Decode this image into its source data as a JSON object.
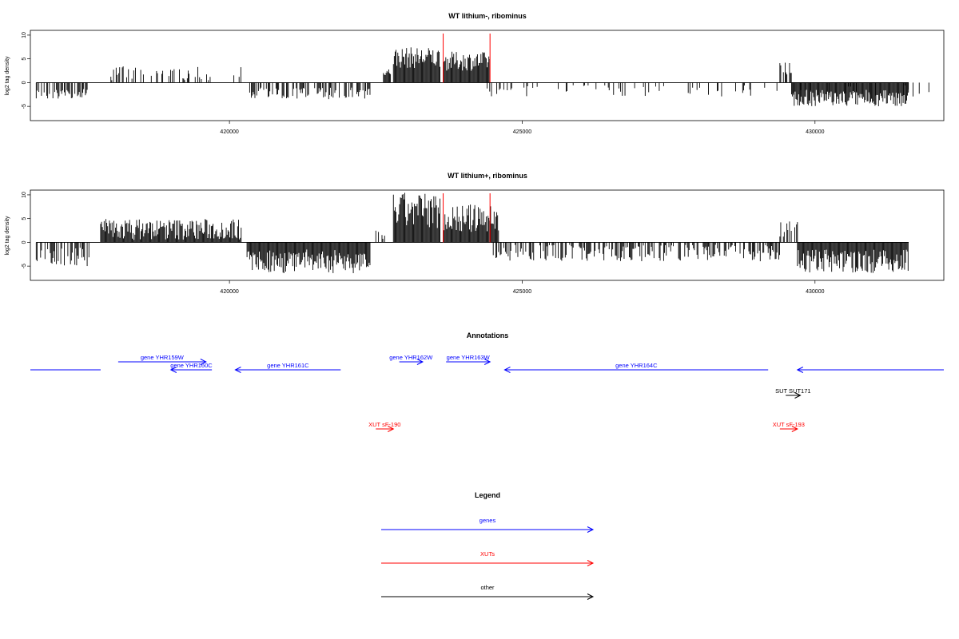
{
  "chart_data": [
    {
      "type": "bar",
      "title": "WT lithium-, ribominus",
      "ylabel": "log2 tag density",
      "xlim": [
        416600,
        432200
      ],
      "ylim": [
        -8,
        11
      ],
      "x_ticks": [
        "420000",
        "425000",
        "430000"
      ],
      "y_ticks": [
        "10",
        "5",
        "0",
        "-5"
      ],
      "grid": false,
      "series": [
        {
          "segments": [
            {
              "start": 416700,
              "end": 417600,
              "sign": -1,
              "min": 1.2,
              "max": 3.5
            },
            {
              "start": 417900,
              "end": 420200,
              "sign": 1,
              "min": 0.5,
              "max": 3.5,
              "density": 0.25
            },
            {
              "start": 420300,
              "end": 422400,
              "sign": -1,
              "min": 1.0,
              "max": 3.5
            },
            {
              "start": 422600,
              "end": 422750,
              "sign": 1,
              "min": 1.5,
              "max": 3.0
            },
            {
              "start": 422800,
              "end": 423600,
              "sign": 1,
              "min": 3.0,
              "max": 7.5,
              "density": 1.0
            },
            {
              "start": 423650,
              "end": 424450,
              "sign": 1,
              "min": 2.5,
              "max": 6.5,
              "density": 1.0
            },
            {
              "start": 424400,
              "end": 432000,
              "sign": -1,
              "min": 0.5,
              "max": 3.0,
              "density": 0.12
            },
            {
              "start": 429400,
              "end": 429600,
              "sign": 1,
              "min": 1.0,
              "max": 4.5
            },
            {
              "start": 429600,
              "end": 431600,
              "sign": -1,
              "min": 1.5,
              "max": 5.0,
              "density": 1.0
            }
          ]
        }
      ],
      "markers": [
        423650,
        424450
      ],
      "marker_color": "#ff0000",
      "bar_color": "#000000"
    },
    {
      "type": "bar",
      "title": "WT lithium+, ribominus",
      "ylabel": "log2 tag density",
      "xlim": [
        416600,
        432200
      ],
      "ylim": [
        -8,
        11
      ],
      "x_ticks": [
        "420000",
        "425000",
        "430000"
      ],
      "y_ticks": [
        "10",
        "5",
        "0",
        "-5"
      ],
      "grid": false,
      "series": [
        {
          "segments": [
            {
              "start": 416700,
              "end": 417600,
              "sign": -1,
              "min": 1.0,
              "max": 5.0
            },
            {
              "start": 417800,
              "end": 420200,
              "sign": 1,
              "min": 0.5,
              "max": 5.0,
              "density": 1.0
            },
            {
              "start": 420300,
              "end": 422400,
              "sign": -1,
              "min": 1.5,
              "max": 6.5,
              "density": 1.0
            },
            {
              "start": 422500,
              "end": 422750,
              "sign": 1,
              "min": 0.5,
              "max": 2.5
            },
            {
              "start": 422800,
              "end": 423600,
              "sign": 1,
              "min": 3.0,
              "max": 10.5,
              "density": 1.0
            },
            {
              "start": 423650,
              "end": 424600,
              "sign": 1,
              "min": 2.0,
              "max": 8.0,
              "density": 1.0
            },
            {
              "start": 424400,
              "end": 429400,
              "sign": -1,
              "min": 0.5,
              "max": 4.0,
              "density": 0.5
            },
            {
              "start": 429400,
              "end": 429700,
              "sign": 1,
              "min": 1.0,
              "max": 4.5
            },
            {
              "start": 429700,
              "end": 431600,
              "sign": -1,
              "min": 1.5,
              "max": 6.5,
              "density": 1.0
            }
          ]
        }
      ],
      "markers": [
        423650,
        424450
      ],
      "marker_color": "#ff0000",
      "bar_color": "#000000"
    }
  ],
  "annotations": {
    "title": "Annotations",
    "features": [
      {
        "label": "",
        "start": 416600,
        "end": 417800,
        "strand": "none",
        "color": "#0000ff",
        "row": 1
      },
      {
        "label": "gene YHR159W",
        "start": 418100,
        "end": 419600,
        "strand": "+",
        "color": "#0000ff",
        "row": 0
      },
      {
        "label": "gene YHR160C",
        "start": 419000,
        "end": 419700,
        "strand": "-",
        "color": "#0000ff",
        "row": 1
      },
      {
        "label": "gene YHR161C",
        "start": 420100,
        "end": 421900,
        "strand": "-",
        "color": "#0000ff",
        "row": 1
      },
      {
        "label": "gene YHR162W",
        "start": 422900,
        "end": 423300,
        "strand": "+",
        "color": "#0000ff",
        "row": 0
      },
      {
        "label": "gene YHR163W",
        "start": 423700,
        "end": 424450,
        "strand": "+",
        "color": "#0000ff",
        "row": 0
      },
      {
        "label": "gene YHR164C",
        "start": 424700,
        "end": 429200,
        "strand": "-",
        "color": "#0000ff",
        "row": 1
      },
      {
        "label": "",
        "start": 429700,
        "end": 432200,
        "strand": "-",
        "color": "#0000ff",
        "row": 1
      },
      {
        "label": "SUT SUT171",
        "start": 429500,
        "end": 429750,
        "strand": "+",
        "color": "#000000",
        "row": 2
      },
      {
        "label": "XUT sF-190",
        "start": 422500,
        "end": 422800,
        "strand": "+",
        "color": "#ff0000",
        "row": 3
      },
      {
        "label": "XUT sF-193",
        "start": 429400,
        "end": 429700,
        "strand": "+",
        "color": "#ff0000",
        "row": 3
      }
    ]
  },
  "legend": {
    "title": "Legend",
    "items": [
      {
        "label": "genes",
        "color": "#0000ff"
      },
      {
        "label": "XUTs",
        "color": "#ff0000"
      },
      {
        "label": "other",
        "color": "#000000"
      }
    ]
  }
}
